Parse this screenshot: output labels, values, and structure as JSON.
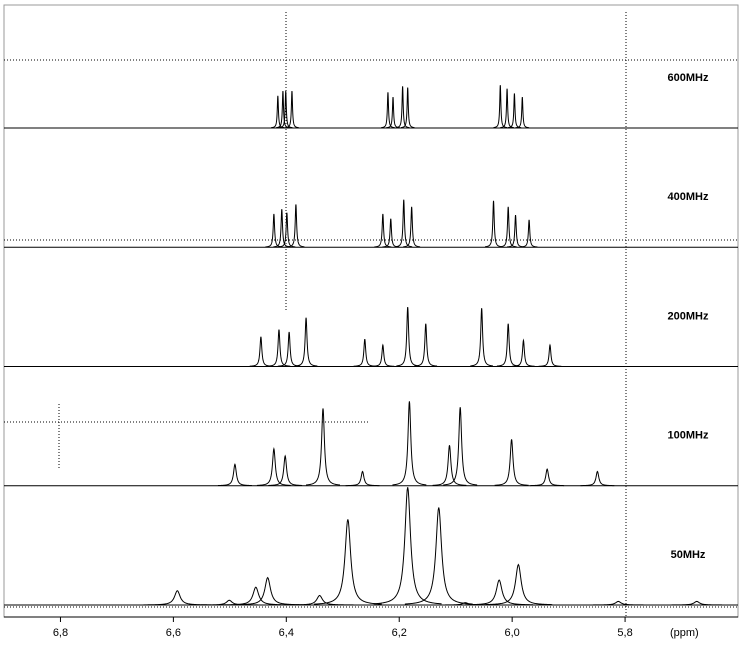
{
  "chart_data": {
    "type": "line",
    "x_label": "(ppm)",
    "color": "#000000",
    "xlim": [
      6.9,
      5.6
    ],
    "xticks": [
      {
        "value": 6.8,
        "label": "6,8"
      },
      {
        "value": 6.6,
        "label": "6,6"
      },
      {
        "value": 6.4,
        "label": "6,4"
      },
      {
        "value": 6.2,
        "label": "6,2"
      },
      {
        "value": 6.0,
        "label": "6,0"
      },
      {
        "value": 5.8,
        "label": "5,8"
      }
    ],
    "ylim": [
      0,
      100
    ],
    "series": [
      {
        "name": "600MHz",
        "x": [
          6.415,
          6.406,
          6.401,
          6.39,
          6.22,
          6.211,
          6.194,
          6.185,
          6.021,
          6.009,
          5.996,
          5.982
        ],
        "values": [
          27,
          31,
          31,
          31,
          30,
          26,
          35,
          34,
          36,
          33,
          29,
          26
        ]
      },
      {
        "name": "400MHz",
        "x": [
          6.422,
          6.408,
          6.399,
          6.383,
          6.229,
          6.215,
          6.192,
          6.178,
          6.033,
          6.007,
          5.994,
          5.97
        ],
        "values": [
          28,
          32,
          29,
          36,
          28,
          24,
          40,
          34,
          39,
          34,
          27,
          23
        ]
      },
      {
        "name": "200MHz",
        "x": [
          6.445,
          6.413,
          6.395,
          6.365,
          6.261,
          6.229,
          6.185,
          6.153,
          6.054,
          6.007,
          5.98,
          5.933
        ],
        "values": [
          25,
          31,
          29,
          41,
          23,
          18,
          50,
          36,
          49,
          36,
          22,
          18
        ]
      },
      {
        "name": "100MHz",
        "x": [
          6.491,
          6.422,
          6.402,
          6.335,
          6.265,
          6.182,
          6.111,
          6.092,
          6.001,
          5.938,
          5.849
        ],
        "values": [
          18,
          31,
          25,
          65,
          12,
          71,
          34,
          66,
          39,
          14,
          12
        ]
      },
      {
        "name": "50MHz",
        "x": [
          6.593,
          6.501,
          6.454,
          6.433,
          6.341,
          6.291,
          6.185,
          6.13,
          6.083,
          6.023,
          5.989,
          5.812,
          5.673
        ],
        "values": [
          12,
          4,
          15,
          23,
          8,
          72,
          99,
          82,
          2,
          21,
          34,
          3,
          3
        ]
      }
    ]
  }
}
